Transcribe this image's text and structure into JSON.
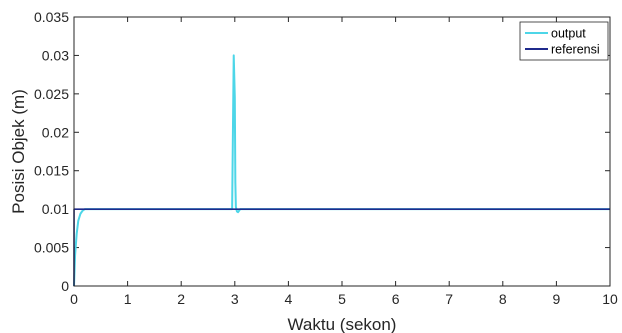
{
  "chart_data": {
    "type": "line",
    "title": "",
    "xlabel": "Waktu (sekon)",
    "ylabel": "Posisi Objek (m)",
    "xlim": [
      0,
      10
    ],
    "ylim": [
      0,
      0.035
    ],
    "x_ticks": [
      0,
      1,
      2,
      3,
      4,
      5,
      6,
      7,
      8,
      9,
      10
    ],
    "x_tick_labels": [
      "0",
      "1",
      "2",
      "3",
      "4",
      "5",
      "6",
      "7",
      "8",
      "9",
      "10"
    ],
    "y_ticks": [
      0,
      0.005,
      0.01,
      0.015,
      0.02,
      0.025,
      0.03,
      0.035
    ],
    "y_tick_labels": [
      "0",
      "0.005",
      "0.01",
      "0.015",
      "0.02",
      "0.025",
      "0.03",
      "0.035"
    ],
    "grid": false,
    "legend_position": "top-right",
    "series": [
      {
        "name": "output",
        "color": "#4dd6e8",
        "x": [
          0,
          0.02,
          0.05,
          0.08,
          0.12,
          0.16,
          0.2,
          1,
          2,
          2.95,
          2.98,
          3.0,
          3.01,
          3.02,
          3.04,
          3.06,
          3.08,
          3.1,
          4,
          5,
          6,
          7,
          8,
          9,
          10
        ],
        "y": [
          0,
          0.004,
          0.0068,
          0.0085,
          0.0094,
          0.0098,
          0.01,
          0.01,
          0.01,
          0.01,
          0.03,
          0.0245,
          0.0135,
          0.0103,
          0.0097,
          0.0096,
          0.0098,
          0.01,
          0.01,
          0.01,
          0.01,
          0.01,
          0.01,
          0.01,
          0.01
        ]
      },
      {
        "name": "referensi",
        "color": "#1f2a8c",
        "x": [
          0,
          0.001,
          10
        ],
        "y": [
          0,
          0.01,
          0.01
        ]
      }
    ]
  }
}
